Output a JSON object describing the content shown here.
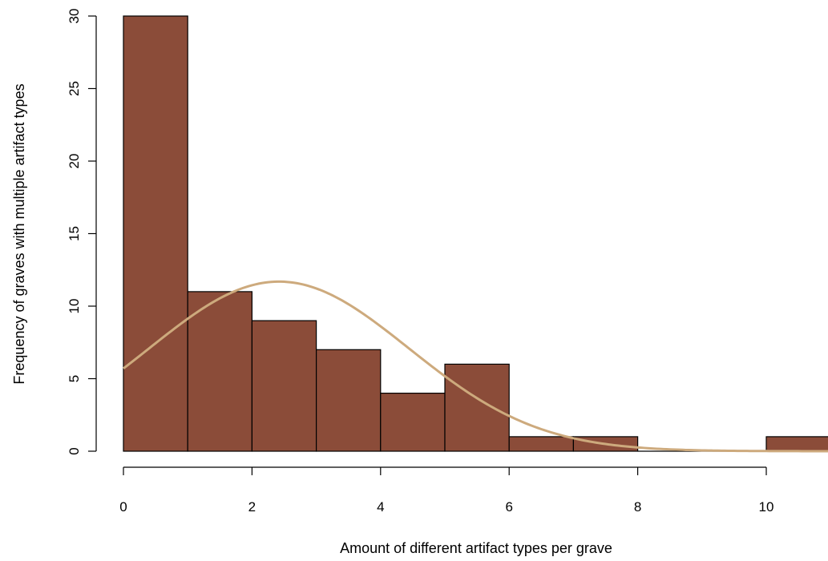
{
  "chart_data": {
    "type": "bar",
    "subtype": "histogram",
    "title": "",
    "xlabel": "Amount of different artifact types per grave",
    "ylabel": "Frequency of graves with multiple artifact types",
    "bins": [
      {
        "start": 0,
        "end": 1,
        "value": 30
      },
      {
        "start": 1,
        "end": 2,
        "value": 11
      },
      {
        "start": 2,
        "end": 3,
        "value": 9
      },
      {
        "start": 3,
        "end": 4,
        "value": 7
      },
      {
        "start": 4,
        "end": 5,
        "value": 4
      },
      {
        "start": 5,
        "end": 6,
        "value": 6
      },
      {
        "start": 6,
        "end": 7,
        "value": 1
      },
      {
        "start": 7,
        "end": 8,
        "value": 1
      },
      {
        "start": 8,
        "end": 9,
        "value": 0
      },
      {
        "start": 9,
        "end": 10,
        "value": 0
      },
      {
        "start": 10,
        "end": 11,
        "value": 1
      }
    ],
    "xlim": [
      0,
      11
    ],
    "ylim": [
      0,
      30
    ],
    "xticks": [
      0,
      2,
      4,
      6,
      8,
      10
    ],
    "yticks": [
      0,
      5,
      10,
      15,
      20,
      25,
      30
    ],
    "curve": {
      "type": "normal-density-scaled",
      "mean": 2.42,
      "sd": 2.02,
      "scale": 59.2,
      "x_range": [
        0,
        11
      ]
    },
    "grid": false,
    "legend": "none",
    "colors": {
      "bar_fill": "#8B4C39",
      "bar_stroke": "#000000",
      "curve": "#CDAA7D",
      "axis": "#000000"
    }
  }
}
